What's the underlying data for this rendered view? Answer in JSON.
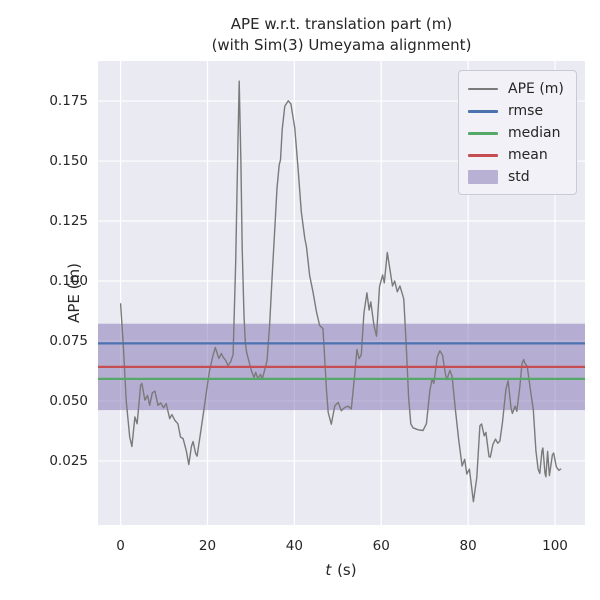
{
  "figure": {
    "title_line1": "APE w.r.t. translation part (m)",
    "title_line2": "(with Sim(3) Umeyama alignment)",
    "background": "#FFFFFF",
    "axes_background": "#EAEAF2",
    "grid_color": "#FFFFFF",
    "text_color": "#262626"
  },
  "axes": {
    "xlabel_italic": "t",
    "xlabel_rest": " (s)",
    "ylabel": "APE (m)"
  },
  "stats": {
    "rmse": 0.074,
    "mean": 0.0642,
    "median": 0.0592,
    "std": 0.018
  },
  "legend": {
    "position": "upper right",
    "items": [
      {
        "label": "APE (m)",
        "type": "line",
        "color": "#7A7A7A",
        "thickness": 2
      },
      {
        "label": "rmse",
        "type": "line",
        "color": "#4C72B0",
        "thickness": 3
      },
      {
        "label": "median",
        "type": "line",
        "color": "#55A868",
        "thickness": 3
      },
      {
        "label": "mean",
        "type": "line",
        "color": "#C44E52",
        "thickness": 3
      },
      {
        "label": "std",
        "type": "patch",
        "color": "#8172B2",
        "alpha": 0.5
      }
    ]
  },
  "chart_data": {
    "type": "line",
    "title": "APE w.r.t. translation part (m)\n(with Sim(3) Umeyama alignment)",
    "xlabel": "t (s)",
    "ylabel": "APE (m)",
    "grid": true,
    "legend_position": "upper right",
    "xlim": [
      -5.2,
      106.9
    ],
    "ylim": [
      -0.0017,
      0.1917
    ],
    "x_ticks": [
      0,
      20,
      40,
      60,
      80,
      100
    ],
    "x_tick_labels": [
      "0",
      "20",
      "40",
      "60",
      "80",
      "100"
    ],
    "y_ticks": [
      0.025,
      0.05,
      0.075,
      0.1,
      0.125,
      0.15,
      0.175
    ],
    "y_tick_labels": [
      "0.025",
      "0.050",
      "0.075",
      "0.100",
      "0.125",
      "0.150",
      "0.175"
    ],
    "hlines": [
      {
        "name": "rmse",
        "value": 0.074,
        "color": "#4C72B0"
      },
      {
        "name": "median",
        "value": 0.0592,
        "color": "#55A868"
      },
      {
        "name": "mean",
        "value": 0.0642,
        "color": "#C44E52"
      }
    ],
    "band": {
      "name": "std",
      "center": 0.0642,
      "halfwidth": 0.018,
      "color": "#8172B2",
      "alpha": 0.5
    },
    "series": [
      {
        "name": "APE (m)",
        "color": "#7A7A7A",
        "x": [
          0,
          0.6,
          1.3,
          2.1,
          2.6,
          3.3,
          3.8,
          4.6,
          4.9,
          5.6,
          6.2,
          6.7,
          7.3,
          7.9,
          8.6,
          9.2,
          9.9,
          10.5,
          11.3,
          11.8,
          12.5,
          13.2,
          13.8,
          14.4,
          15.1,
          15.7,
          16.3,
          16.7,
          17.3,
          17.6,
          18.2,
          19,
          19.8,
          20.5,
          21.3,
          21.8,
          22.6,
          23.2,
          23.6,
          24.2,
          24.7,
          25.3,
          25.9,
          26.5,
          27,
          27.3,
          27.7,
          28,
          28.4,
          28.7,
          29,
          29.6,
          30.1,
          30.7,
          31.1,
          31.6,
          32.2,
          32.6,
          33.2,
          33.7,
          34.3,
          34.9,
          35.5,
          36,
          36.5,
          36.8,
          37.2,
          37.8,
          38.6,
          39.2,
          40.1,
          40.9,
          41.6,
          42.4,
          42.8,
          43.5,
          44.3,
          45.1,
          45.8,
          46.6,
          47.4,
          47.8,
          48.5,
          49.3,
          50.1,
          50.8,
          51.6,
          52.4,
          53.1,
          53.9,
          54.4,
          54.9,
          55.4,
          56,
          56.7,
          57.2,
          57.6,
          58.3,
          58.9,
          59.6,
          60.3,
          60.7,
          61.4,
          62.2,
          62.6,
          63.1,
          63.7,
          64.3,
          64.9,
          65.2,
          65.8,
          66.3,
          66.8,
          67.3,
          68.5,
          69.6,
          70.4,
          71.2,
          71.7,
          72.1,
          72.9,
          73.5,
          74.1,
          74.8,
          75.1,
          75.8,
          76.3,
          77.1,
          77.8,
          78.6,
          79.2,
          79.7,
          80.3,
          81.2,
          82,
          82.7,
          83.1,
          83.7,
          84.1,
          84.8,
          85.1,
          85.7,
          86.3,
          86.8,
          87.3,
          87.9,
          88.7,
          89.2,
          89.9,
          90.2,
          90.8,
          91.2,
          91.9,
          92.4,
          92.8,
          93.1,
          93.6,
          94.4,
          95,
          95.6,
          96.1,
          96.5,
          97,
          97.2,
          97.7,
          97.9,
          98.3,
          98.7,
          99.4,
          99.7,
          100.3,
          100.9,
          101.3
        ],
        "y": [
          0.0905,
          0.074,
          0.0502,
          0.035,
          0.031,
          0.0433,
          0.0405,
          0.0565,
          0.0573,
          0.0503,
          0.0523,
          0.0482,
          0.0534,
          0.0541,
          0.0482,
          0.0492,
          0.0472,
          0.0489,
          0.0426,
          0.0443,
          0.0419,
          0.0405,
          0.035,
          0.0343,
          0.0294,
          0.0235,
          0.031,
          0.0331,
          0.028,
          0.027,
          0.0343,
          0.044,
          0.0544,
          0.0628,
          0.0691,
          0.0723,
          0.0677,
          0.0698,
          0.0683,
          0.0669,
          0.0648,
          0.0662,
          0.0693,
          0.108,
          0.1568,
          0.1833,
          0.1498,
          0.1135,
          0.0856,
          0.0745,
          0.0703,
          0.0661,
          0.0626,
          0.0598,
          0.0619,
          0.0593,
          0.0611,
          0.059,
          0.0632,
          0.0667,
          0.0814,
          0.1024,
          0.1219,
          0.1387,
          0.1484,
          0.1505,
          0.1631,
          0.1729,
          0.1751,
          0.1738,
          0.1637,
          0.1456,
          0.1289,
          0.1177,
          0.1142,
          0.1024,
          0.0954,
          0.0871,
          0.0815,
          0.0801,
          0.0543,
          0.0452,
          0.0403,
          0.048,
          0.0494,
          0.0459,
          0.0473,
          0.0478,
          0.0467,
          0.0614,
          0.0714,
          0.0676,
          0.0693,
          0.0865,
          0.0951,
          0.0879,
          0.0913,
          0.0816,
          0.077,
          0.0976,
          0.1025,
          0.0992,
          0.1119,
          0.1025,
          0.0979,
          0.1,
          0.0955,
          0.0979,
          0.0944,
          0.0924,
          0.0718,
          0.0516,
          0.0405,
          0.0388,
          0.038,
          0.0377,
          0.0405,
          0.0545,
          0.0593,
          0.0573,
          0.0684,
          0.0709,
          0.0691,
          0.0611,
          0.0589,
          0.0628,
          0.0603,
          0.046,
          0.0341,
          0.0229,
          0.0257,
          0.0195,
          0.0216,
          0.008,
          0.0181,
          0.0397,
          0.0404,
          0.0355,
          0.0369,
          0.0268,
          0.0266,
          0.0319,
          0.0341,
          0.0324,
          0.0333,
          0.0412,
          0.0548,
          0.0584,
          0.0469,
          0.0448,
          0.0478,
          0.0457,
          0.0558,
          0.0656,
          0.0673,
          0.0656,
          0.0645,
          0.0538,
          0.0464,
          0.0293,
          0.0216,
          0.0198,
          0.0293,
          0.0304,
          0.0198,
          0.0184,
          0.029,
          0.0189,
          0.0275,
          0.0283,
          0.0225,
          0.0211,
          0.0216
        ]
      }
    ]
  }
}
